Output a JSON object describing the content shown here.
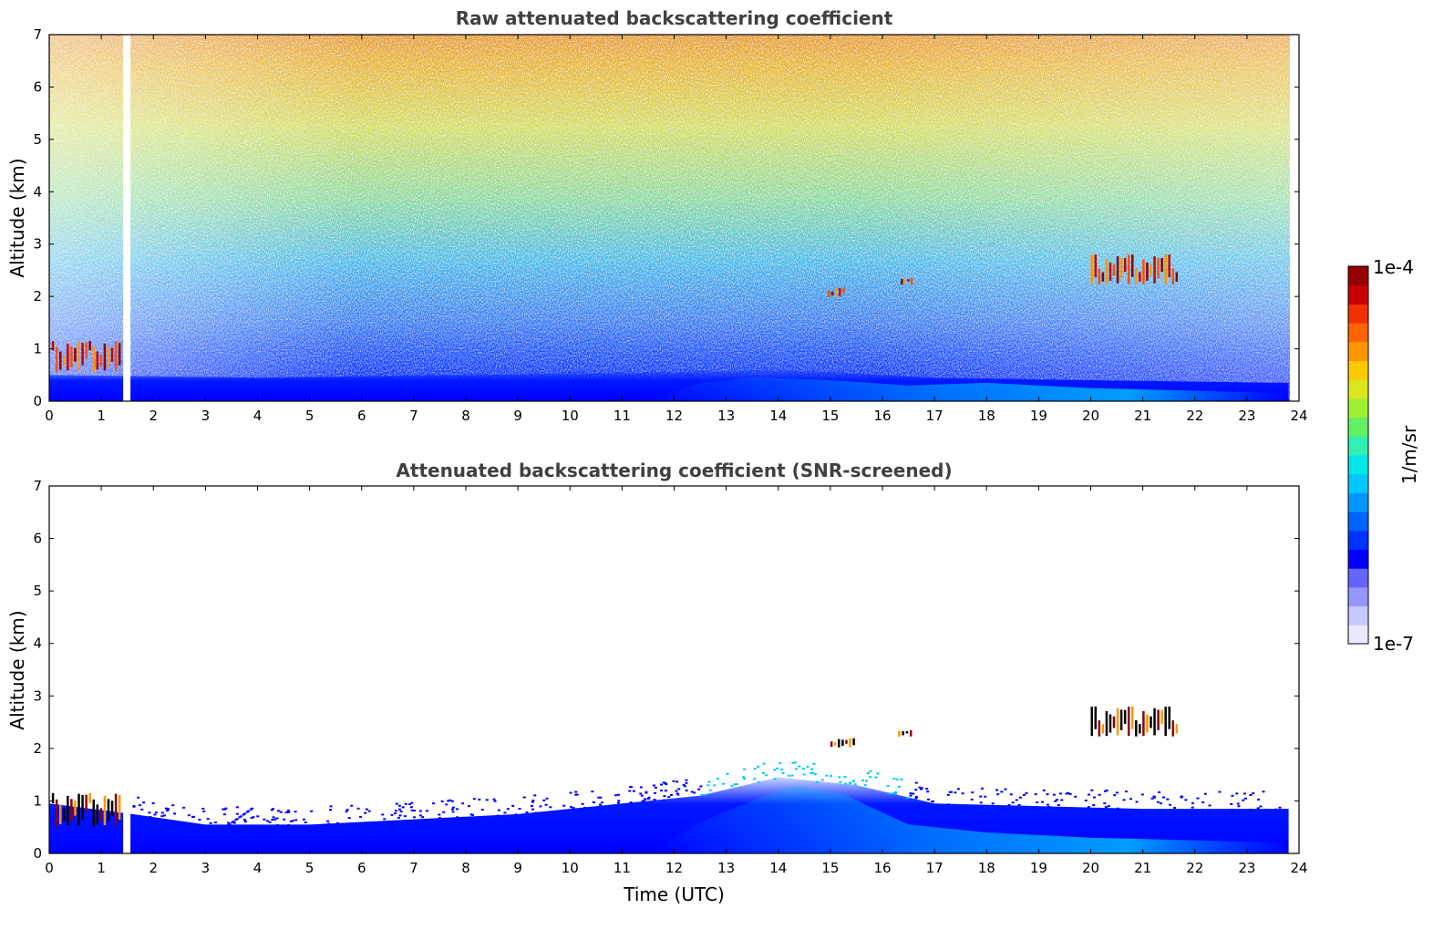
{
  "chart_data": [
    {
      "type": "heatmap",
      "title": "Raw attenuated backscattering coefficient",
      "xlabel": "",
      "ylabel": "Altitude (km)",
      "xlim": [
        0,
        24
      ],
      "ylim": [
        0,
        7
      ],
      "xticks": [
        "0",
        "1",
        "2",
        "3",
        "4",
        "5",
        "6",
        "7",
        "8",
        "9",
        "10",
        "11",
        "12",
        "13",
        "14",
        "15",
        "16",
        "17",
        "18",
        "19",
        "20",
        "21",
        "22",
        "23",
        "24"
      ],
      "yticks": [
        "0",
        "1",
        "2",
        "3",
        "4",
        "5",
        "6",
        "7"
      ],
      "data_gap_hours": [
        1.42,
        1.56
      ],
      "boundary_layer_top_km": [
        {
          "x": 0,
          "y": 0.5
        },
        {
          "x": 4,
          "y": 0.45
        },
        {
          "x": 8,
          "y": 0.5
        },
        {
          "x": 12,
          "y": 0.55
        },
        {
          "x": 14,
          "y": 0.6
        },
        {
          "x": 17,
          "y": 0.45
        },
        {
          "x": 20,
          "y": 0.4
        },
        {
          "x": 23.8,
          "y": 0.35
        }
      ],
      "clouds": [
        {
          "x0": 0.05,
          "x1": 1.4,
          "y0": 0.55,
          "y1": 1.15
        },
        {
          "x0": 14.95,
          "x1": 15.3,
          "y0": 1.95,
          "y1": 2.2
        },
        {
          "x0": 16.35,
          "x1": 16.6,
          "y0": 2.2,
          "y1": 2.35
        },
        {
          "x0": 20.0,
          "x1": 21.7,
          "y0": 2.2,
          "y1": 2.8
        }
      ]
    },
    {
      "type": "heatmap",
      "title": "Attenuated backscattering coefficient (SNR-screened)",
      "xlabel": "Time (UTC)",
      "ylabel": "Altitude (km)",
      "xlim": [
        0,
        24
      ],
      "ylim": [
        0,
        7
      ],
      "xticks": [
        "0",
        "1",
        "2",
        "3",
        "4",
        "5",
        "6",
        "7",
        "8",
        "9",
        "10",
        "11",
        "12",
        "13",
        "14",
        "15",
        "16",
        "17",
        "18",
        "19",
        "20",
        "21",
        "22",
        "23",
        "24"
      ],
      "yticks": [
        "0",
        "1",
        "2",
        "3",
        "4",
        "5",
        "6",
        "7"
      ],
      "data_gap_hours": [
        1.42,
        1.56
      ],
      "screened_top_km": [
        {
          "x": 0,
          "y": 0.95
        },
        {
          "x": 1.6,
          "y": 0.75
        },
        {
          "x": 3,
          "y": 0.55
        },
        {
          "x": 5,
          "y": 0.55
        },
        {
          "x": 7,
          "y": 0.65
        },
        {
          "x": 9,
          "y": 0.75
        },
        {
          "x": 11,
          "y": 0.95
        },
        {
          "x": 12.5,
          "y": 1.1
        },
        {
          "x": 14,
          "y": 1.45
        },
        {
          "x": 15.5,
          "y": 1.3
        },
        {
          "x": 17,
          "y": 0.95
        },
        {
          "x": 19,
          "y": 0.9
        },
        {
          "x": 21,
          "y": 0.85
        },
        {
          "x": 23.8,
          "y": 0.85
        }
      ],
      "clouds": [
        {
          "x0": 0.05,
          "x1": 1.4,
          "y0": 0.5,
          "y1": 1.15
        },
        {
          "x0": 15.0,
          "x1": 15.5,
          "y0": 2.0,
          "y1": 2.2
        },
        {
          "x0": 16.3,
          "x1": 16.6,
          "y0": 2.2,
          "y1": 2.35
        },
        {
          "x0": 20.0,
          "x1": 21.7,
          "y0": 2.2,
          "y1": 2.8
        }
      ]
    }
  ],
  "colorbar": {
    "label": "1/m/sr",
    "max_label": "1e-4",
    "min_label": "1e-7",
    "colors": [
      "#ebebff",
      "#c8c8ff",
      "#9696ff",
      "#6464ff",
      "#0000ff",
      "#0032ff",
      "#0064ff",
      "#0096ff",
      "#00c8ff",
      "#00e6e6",
      "#32f0b4",
      "#64f064",
      "#a0f032",
      "#dce61e",
      "#ffc800",
      "#ff9600",
      "#ff6400",
      "#f03200",
      "#c80000",
      "#960000"
    ]
  }
}
